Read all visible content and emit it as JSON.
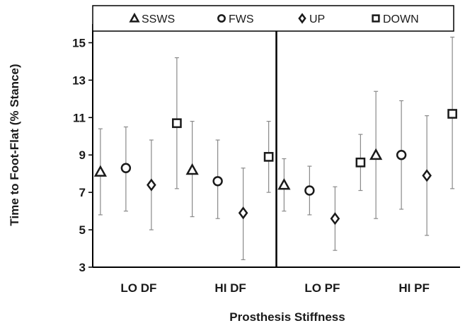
{
  "chart_data": {
    "type": "scatter",
    "categories": [
      "LO DF",
      "HI DF",
      "LO PF",
      "HI PF"
    ],
    "xlabel": "Prosthesis Stiffness",
    "ylabel": "Time to Foot-Flat (% Stance)",
    "ylim": [
      3,
      16
    ],
    "yticks": [
      3,
      5,
      7,
      9,
      11,
      13,
      15
    ],
    "grid": false,
    "divider_between": [
      "HI DF",
      "LO PF"
    ],
    "legend_position": "top",
    "series": [
      {
        "name": "SSWS",
        "marker": "triangle",
        "values": [
          8.1,
          8.2,
          7.4,
          9.0
        ],
        "err_low": [
          5.8,
          5.7,
          6.0,
          5.6
        ],
        "err_high": [
          10.4,
          10.8,
          8.8,
          12.4
        ]
      },
      {
        "name": "FWS",
        "marker": "circle",
        "values": [
          8.3,
          7.6,
          7.1,
          9.0
        ],
        "err_low": [
          6.0,
          5.6,
          5.8,
          6.1
        ],
        "err_high": [
          10.5,
          9.8,
          8.4,
          11.9
        ]
      },
      {
        "name": "UP",
        "marker": "diamond",
        "values": [
          7.4,
          5.9,
          5.6,
          7.9
        ],
        "err_low": [
          5.0,
          3.4,
          3.9,
          4.7
        ],
        "err_high": [
          9.8,
          8.3,
          7.3,
          11.1
        ]
      },
      {
        "name": "DOWN",
        "marker": "square",
        "values": [
          10.7,
          8.9,
          8.6,
          11.2
        ],
        "err_low": [
          7.2,
          7.0,
          7.1,
          7.2
        ],
        "err_high": [
          14.2,
          10.8,
          10.1,
          15.3
        ]
      }
    ],
    "colors": {
      "marker_stroke": "#1a1a1a",
      "marker_fill": "#ffffff",
      "error_bar": "#8a8a8a",
      "axis": "#000000"
    }
  }
}
